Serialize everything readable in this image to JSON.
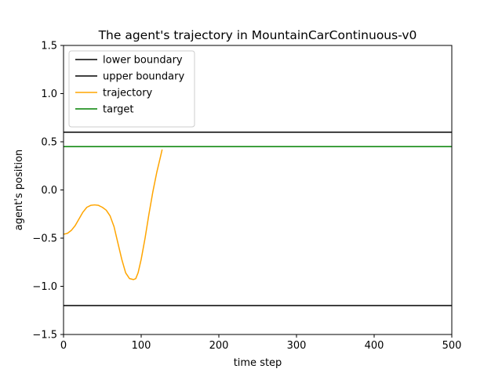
{
  "chart_data": {
    "type": "line",
    "title": "The agent's trajectory in MountainCarContinuous-v0",
    "xlabel": "time step",
    "ylabel": "agent's position",
    "xlim": [
      0,
      500
    ],
    "ylim": [
      -1.5,
      1.5
    ],
    "x_ticks": [
      0,
      100,
      200,
      300,
      400,
      500
    ],
    "y_ticks": [
      -1.5,
      -1.0,
      -0.5,
      0.0,
      0.5,
      1.0,
      1.5
    ],
    "x_tick_labels": [
      "0",
      "100",
      "200",
      "300",
      "400",
      "500"
    ],
    "y_tick_labels": [
      "−1.5",
      "−1.0",
      "−0.5",
      "0.0",
      "0.5",
      "1.0",
      "1.5"
    ],
    "grid": false,
    "legend_position": "top-left",
    "series": [
      {
        "name": "lower boundary",
        "kind": "hline",
        "y": -1.2,
        "color": "#000000"
      },
      {
        "name": "upper boundary",
        "kind": "hline",
        "y": 0.6,
        "color": "#000000"
      },
      {
        "name": "trajectory",
        "kind": "line",
        "color": "#ffa500",
        "x": [
          0,
          5,
          10,
          15,
          20,
          25,
          30,
          35,
          40,
          45,
          50,
          55,
          60,
          65,
          70,
          75,
          80,
          85,
          90,
          93,
          96,
          100,
          105,
          110,
          115,
          120,
          125,
          127
        ],
        "y": [
          -0.46,
          -0.45,
          -0.42,
          -0.37,
          -0.3,
          -0.23,
          -0.18,
          -0.16,
          -0.155,
          -0.16,
          -0.18,
          -0.21,
          -0.27,
          -0.38,
          -0.55,
          -0.72,
          -0.86,
          -0.92,
          -0.93,
          -0.92,
          -0.86,
          -0.72,
          -0.5,
          -0.25,
          -0.02,
          0.18,
          0.35,
          0.42
        ]
      },
      {
        "name": "target",
        "kind": "hline",
        "y": 0.45,
        "color": "#008000"
      }
    ]
  }
}
